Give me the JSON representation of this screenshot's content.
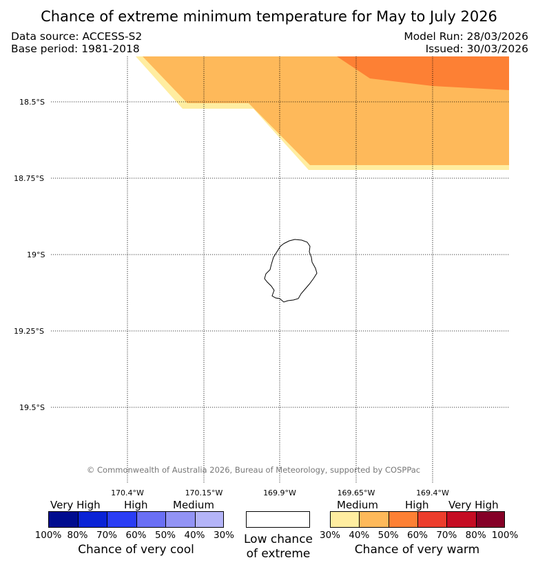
{
  "title": "Chance of extreme minimum temperature for May to July 2026",
  "header": {
    "data_source": "Data source: ACCESS-S2",
    "base_period": "Base period: 1981-2018",
    "model_run": "Model Run: 28/03/2026",
    "issued": "Issued: 30/03/2026"
  },
  "map": {
    "lat_labels": [
      "18.5°S",
      "18.75°S",
      "19°S",
      "19.25°S",
      "19.5°S"
    ],
    "lon_labels": [
      "170.4°W",
      "170.15°W",
      "169.9°W",
      "169.65°W",
      "169.4°W"
    ],
    "copyright": "© Commonwealth of Australia 2026, Bureau of Meteorology, supported by COSPPac",
    "colors": {
      "warm_30_40": "#ffeda0",
      "warm_40_50": "#feb95a",
      "warm_50_60": "#fd8034"
    }
  },
  "legend": {
    "cool": {
      "categories": [
        "Very High",
        "High",
        "Medium"
      ],
      "percent_labels": [
        "100%",
        "80%",
        "70%",
        "60%",
        "50%",
        "40%",
        "30%"
      ],
      "colors": [
        "#000c8f",
        "#0a23d6",
        "#2a3df5",
        "#6a6ff5",
        "#9293f5",
        "#b4b4f8"
      ],
      "title": "Chance of very cool"
    },
    "neutral": {
      "title_line1": "Low chance",
      "title_line2": "of extreme",
      "color": "#ffffff"
    },
    "warm": {
      "categories": [
        "Medium",
        "High",
        "Very High"
      ],
      "percent_labels": [
        "30%",
        "40%",
        "50%",
        "60%",
        "70%",
        "80%",
        "100%"
      ],
      "colors": [
        "#ffeda0",
        "#feb95a",
        "#fd8034",
        "#ec3d2c",
        "#c50c23",
        "#850027"
      ],
      "title": "Chance of very warm"
    }
  }
}
